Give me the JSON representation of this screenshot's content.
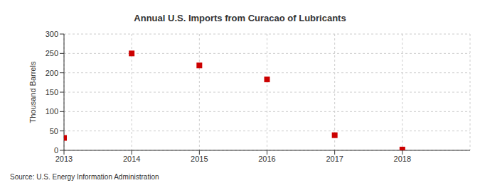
{
  "chart_data": {
    "type": "scatter",
    "title": "Annual U.S. Imports from Curacao of Lubricants",
    "y_label": "Thousand Barrels",
    "source": "Source: U.S. Energy Information Administration",
    "x": [
      2013,
      2014,
      2015,
      2016,
      2017,
      2018
    ],
    "values": [
      32,
      250,
      219,
      183,
      39,
      2
    ],
    "color": "#cc0000",
    "marker": "square",
    "xlim": [
      2013,
      2019
    ],
    "xticks": [
      2013,
      2014,
      2015,
      2016,
      2017,
      2018
    ],
    "ylim": [
      0,
      300
    ],
    "yticks": [
      0,
      50,
      100,
      150,
      200,
      250,
      300
    ],
    "grid": true
  }
}
